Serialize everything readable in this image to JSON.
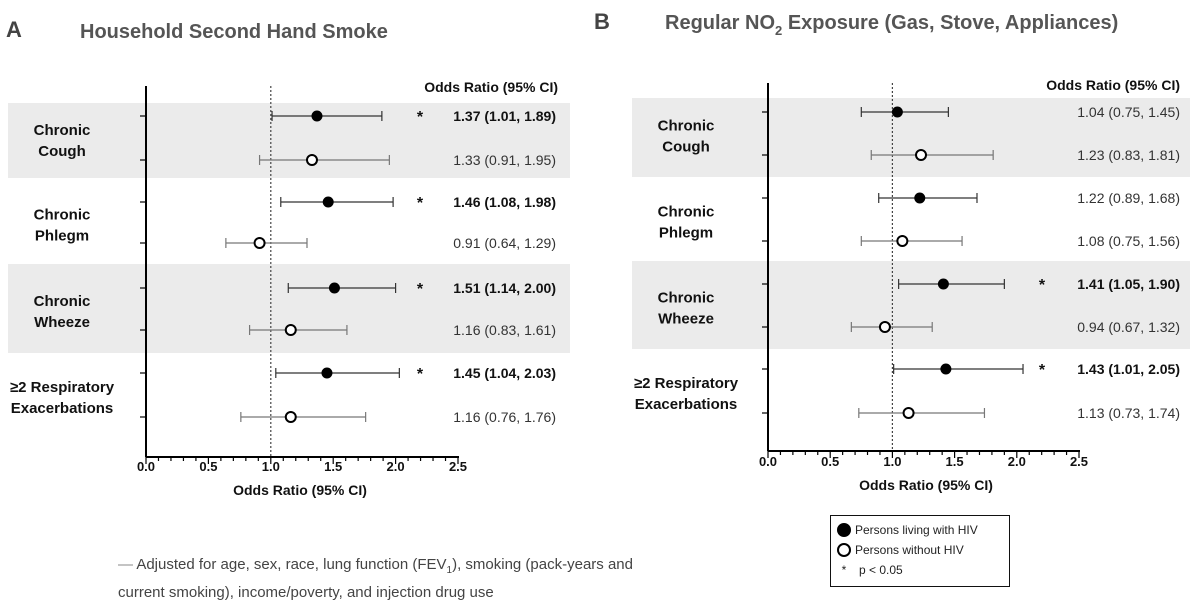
{
  "chart_data": [
    {
      "type": "forest",
      "panel_letter": "A",
      "title": "Household Second Hand Smoke",
      "title_sub": "",
      "title_rest": "",
      "xlabel": "Odds Ratio (95% CI)",
      "column_header": "Odds Ratio (95% CI)",
      "xlim": [
        0.0,
        2.5
      ],
      "xticks": [
        "0.0",
        "0.5",
        "1.0",
        "1.5",
        "2.0",
        "2.5"
      ],
      "reference_line": 1.0,
      "groups": [
        {
          "label_lines": [
            "Chronic",
            "Cough"
          ],
          "shaded": true,
          "rows": [
            {
              "series": "Persons living with HIV",
              "estimate": 1.37,
              "ci_low": 1.01,
              "ci_high": 1.89,
              "label": "1.37 (1.01, 1.89)",
              "significant": true
            },
            {
              "series": "Persons without HIV",
              "estimate": 1.33,
              "ci_low": 0.91,
              "ci_high": 1.95,
              "label": "1.33 (0.91, 1.95)",
              "significant": false
            }
          ]
        },
        {
          "label_lines": [
            "Chronic",
            "Phlegm"
          ],
          "shaded": false,
          "rows": [
            {
              "series": "Persons living with HIV",
              "estimate": 1.46,
              "ci_low": 1.08,
              "ci_high": 1.98,
              "label": "1.46 (1.08, 1.98)",
              "significant": true
            },
            {
              "series": "Persons without HIV",
              "estimate": 0.91,
              "ci_low": 0.64,
              "ci_high": 1.29,
              "label": "0.91 (0.64, 1.29)",
              "significant": false
            }
          ]
        },
        {
          "label_lines": [
            "Chronic",
            "Wheeze"
          ],
          "shaded": true,
          "rows": [
            {
              "series": "Persons living with HIV",
              "estimate": 1.51,
              "ci_low": 1.14,
              "ci_high": 2.0,
              "label": "1.51 (1.14, 2.00)",
              "significant": true
            },
            {
              "series": "Persons without HIV",
              "estimate": 1.16,
              "ci_low": 0.83,
              "ci_high": 1.61,
              "label": "1.16 (0.83, 1.61)",
              "significant": false
            }
          ]
        },
        {
          "label_lines": [
            "≥2 Respiratory",
            "Exacerbations"
          ],
          "shaded": false,
          "rows": [
            {
              "series": "Persons living with HIV",
              "estimate": 1.45,
              "ci_low": 1.04,
              "ci_high": 2.03,
              "label": "1.45 (1.04, 2.03)",
              "significant": true
            },
            {
              "series": "Persons without HIV",
              "estimate": 1.16,
              "ci_low": 0.76,
              "ci_high": 1.76,
              "label": "1.16 (0.76, 1.76)",
              "significant": false
            }
          ]
        }
      ]
    },
    {
      "type": "forest",
      "panel_letter": "B",
      "title": "Regular NO",
      "title_sub": "2",
      "title_rest": " Exposure (Gas, Stove, Appliances)",
      "xlabel": "Odds Ratio (95% CI)",
      "column_header": "Odds Ratio (95% CI)",
      "xlim": [
        0.0,
        2.5
      ],
      "xticks": [
        "0.0",
        "0.5",
        "1.0",
        "1.5",
        "2.0",
        "2.5"
      ],
      "reference_line": 1.0,
      "groups": [
        {
          "label_lines": [
            "Chronic",
            "Cough"
          ],
          "shaded": true,
          "rows": [
            {
              "series": "Persons living with HIV",
              "estimate": 1.04,
              "ci_low": 0.75,
              "ci_high": 1.45,
              "label": "1.04 (0.75, 1.45)",
              "significant": false
            },
            {
              "series": "Persons without HIV",
              "estimate": 1.23,
              "ci_low": 0.83,
              "ci_high": 1.81,
              "label": "1.23 (0.83, 1.81)",
              "significant": false
            }
          ]
        },
        {
          "label_lines": [
            "Chronic",
            "Phlegm"
          ],
          "shaded": false,
          "rows": [
            {
              "series": "Persons living with HIV",
              "estimate": 1.22,
              "ci_low": 0.89,
              "ci_high": 1.68,
              "label": "1.22 (0.89, 1.68)",
              "significant": false
            },
            {
              "series": "Persons without HIV",
              "estimate": 1.08,
              "ci_low": 0.75,
              "ci_high": 1.56,
              "label": "1.08 (0.75, 1.56)",
              "significant": false
            }
          ]
        },
        {
          "label_lines": [
            "Chronic",
            "Wheeze"
          ],
          "shaded": true,
          "rows": [
            {
              "series": "Persons living with HIV",
              "estimate": 1.41,
              "ci_low": 1.05,
              "ci_high": 1.9,
              "label": "1.41 (1.05, 1.90)",
              "significant": true
            },
            {
              "series": "Persons without HIV",
              "estimate": 0.94,
              "ci_low": 0.67,
              "ci_high": 1.32,
              "label": "0.94 (0.67, 1.32)",
              "significant": false
            }
          ]
        },
        {
          "label_lines": [
            "≥2 Respiratory",
            "Exacerbations"
          ],
          "shaded": false,
          "rows": [
            {
              "series": "Persons living with HIV",
              "estimate": 1.43,
              "ci_low": 1.01,
              "ci_high": 2.05,
              "label": "1.43 (1.01, 2.05)",
              "significant": true
            },
            {
              "series": "Persons without HIV",
              "estimate": 1.13,
              "ci_low": 0.73,
              "ci_high": 1.74,
              "label": "1.13 (0.73, 1.74)",
              "significant": false
            }
          ]
        }
      ]
    }
  ],
  "legend": {
    "hiv_label": "Persons living with HIV",
    "no_hiv_label": "Persons without HIV",
    "star_symbol": "*",
    "sig_label": "p < 0.05"
  },
  "footnote": {
    "dash": "—",
    "line1_pre": " Adjusted for age, sex, race, lung function (FEV",
    "line1_sub": "1",
    "line1_post": "), smoking (pack-years and",
    "line2": "current smoking), income/poverty, and injection drug use"
  },
  "colors": {
    "shade": "#ebebeb",
    "marker": "#000000",
    "ci_line_hiv": "#333333",
    "ci_line_no_hiv": "#777777",
    "text": "#222222"
  }
}
